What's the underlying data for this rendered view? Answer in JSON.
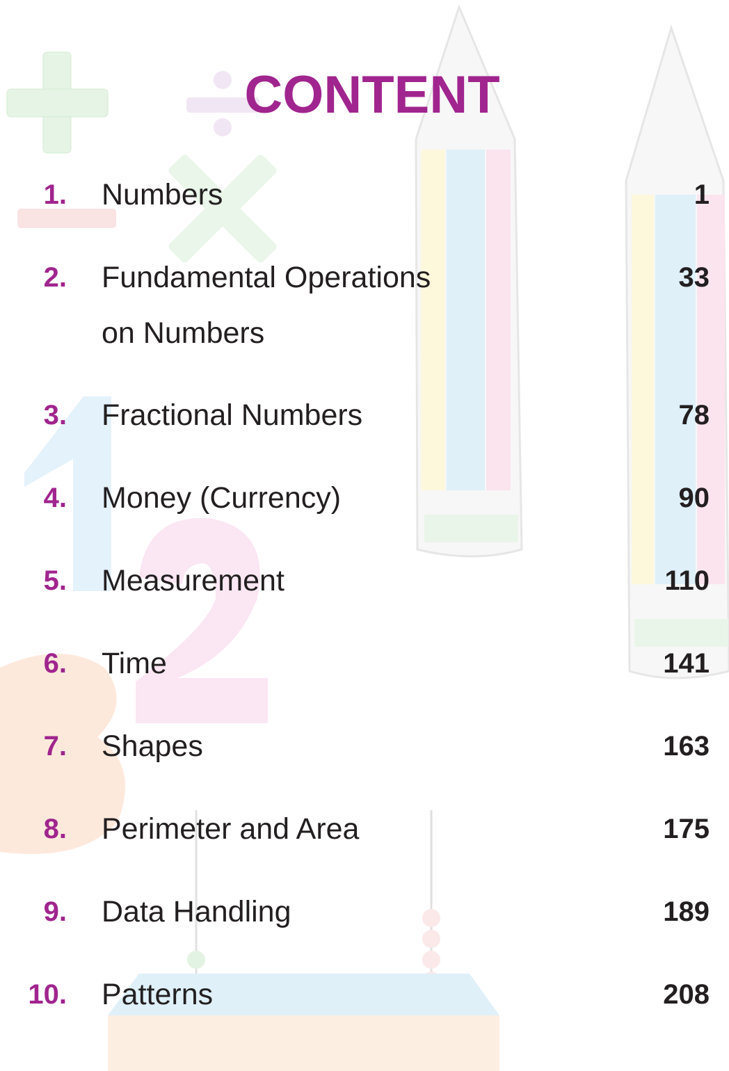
{
  "title": "CONTENT",
  "entries": [
    {
      "number": "1.",
      "title": [
        "Numbers"
      ],
      "page": "1"
    },
    {
      "number": "2.",
      "title": [
        "Fundamental Operations",
        "on Numbers"
      ],
      "page": "33"
    },
    {
      "number": "3.",
      "title": [
        "Fractional Numbers"
      ],
      "page": "78"
    },
    {
      "number": "4.",
      "title": [
        "Money (Currency)"
      ],
      "page": "90"
    },
    {
      "number": "5.",
      "title": [
        "Measurement"
      ],
      "page": "110"
    },
    {
      "number": "6.",
      "title": [
        "Time"
      ],
      "page": "141"
    },
    {
      "number": "7.",
      "title": [
        "Shapes"
      ],
      "page": "163"
    },
    {
      "number": "8.",
      "title": [
        "Perimeter and Area"
      ],
      "page": "175"
    },
    {
      "number": "9.",
      "title": [
        "Data Handling"
      ],
      "page": "189"
    },
    {
      "number": "10.",
      "title": [
        "Patterns"
      ],
      "page": "208"
    }
  ]
}
